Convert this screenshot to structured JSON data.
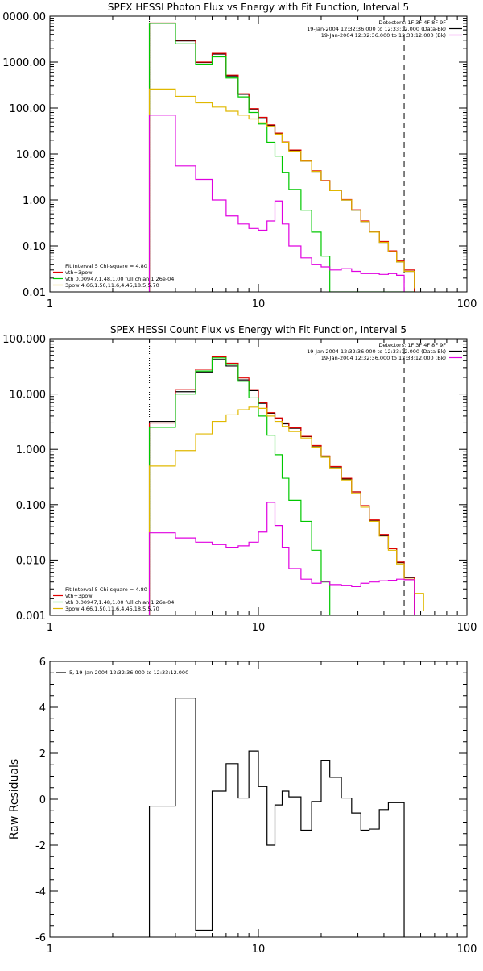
{
  "chart_data": [
    {
      "type": "line",
      "title": "SPEX HESSI Photon Flux vs Energy with Fit Function, Interval 5",
      "xlabel": "",
      "ylabel": "",
      "xscale": "log",
      "yscale": "log",
      "xlim": [
        1,
        100
      ],
      "ylim": [
        0.01,
        10000
      ],
      "xtick_labels": [
        {
          "v": 1,
          "t": "1"
        },
        {
          "v": 10,
          "t": "10"
        },
        {
          "v": 100,
          "t": "100"
        }
      ],
      "ytick_labels": [
        {
          "v": 0.01,
          "t": "0.01"
        },
        {
          "v": 0.1,
          "t": "0.10"
        },
        {
          "v": 1,
          "t": "1.00"
        },
        {
          "v": 10,
          "t": "10.00"
        },
        {
          "v": 100,
          "t": "100.00"
        },
        {
          "v": 1000,
          "t": "1000.00"
        },
        {
          "v": 10000,
          "t": "0000.00"
        }
      ],
      "vlines": [
        {
          "x": 3,
          "style": "dotted"
        },
        {
          "x": 50,
          "style": "dashed"
        }
      ],
      "bin_edges": [
        3,
        4,
        5,
        6,
        7,
        8,
        9,
        10,
        11,
        12,
        13,
        14,
        16,
        18,
        20,
        22,
        25,
        28,
        31,
        34,
        38,
        42,
        46,
        50,
        56
      ],
      "series": [
        {
          "color": "#000000",
          "values": [
            7000,
            2900,
            980,
            1500,
            500,
            200,
            95,
            62,
            42,
            28,
            18,
            12,
            7,
            4.2,
            2.6,
            1.6,
            1.0,
            0.6,
            0.34,
            0.2,
            0.12,
            0.075,
            0.045,
            0.028
          ]
        },
        {
          "color": "#e00000",
          "values": [
            7100,
            3000,
            1000,
            1550,
            520,
            205,
            97,
            63,
            43,
            28.5,
            18.3,
            12.2,
            7.1,
            4.3,
            2.65,
            1.62,
            1.02,
            0.61,
            0.35,
            0.21,
            0.125,
            0.078,
            0.047,
            0.03
          ]
        },
        {
          "color": "#00c800",
          "values": [
            7000,
            2500,
            900,
            1300,
            450,
            175,
            80,
            45,
            18,
            9,
            4,
            1.7,
            0.6,
            0.2,
            0.06,
            0.01,
            0.01,
            0.01,
            0.01,
            0.01,
            0.01,
            0.01,
            0.01,
            0.01
          ]
        },
        {
          "color": "#e0b800",
          "values": [
            260,
            180,
            130,
            105,
            85,
            70,
            58,
            48,
            40,
            27,
            18,
            11.5,
            7,
            4.2,
            2.6,
            1.6,
            1.0,
            0.6,
            0.34,
            0.2,
            0.12,
            0.075,
            0.045,
            0.028,
            0.012
          ]
        },
        {
          "color": "#e000e0",
          "values": [
            70,
            5.5,
            2.8,
            1.0,
            0.45,
            0.3,
            0.24,
            0.22,
            0.35,
            0.95,
            0.3,
            0.1,
            0.055,
            0.04,
            0.035,
            0.03,
            0.032,
            0.028,
            0.025,
            0.025,
            0.024,
            0.025,
            0.023
          ]
        }
      ],
      "legend_top": [
        {
          "text": "Detectors: 1F 3F 4F 8F 9F",
          "color": ""
        },
        {
          "text": "19-Jan-2004 12:32:36.000 to 12:33:12.000 (Data-Bk)",
          "color": "#000000"
        },
        {
          "text": "19-Jan-2004 12:32:36.000 to 12:33:12.000 (Bk)",
          "color": "#e000e0"
        }
      ],
      "legend_bottom": [
        {
          "text": "Fit Interval 5   Chi-square = 4.80",
          "color": ""
        },
        {
          "text": "vth+3pow",
          "color": "#e00000"
        },
        {
          "text": "vth 0.00947,1.48,1.00  full chian 1.26e-04",
          "color": "#00c800"
        },
        {
          "text": "3pow 4.66,1.50,11.6,4.45,18.5,5.70",
          "color": "#e0b800"
        }
      ]
    },
    {
      "type": "line",
      "title": "SPEX HESSI Count Flux vs Energy with Fit Function, Interval 5",
      "xlabel": "",
      "ylabel": "",
      "xscale": "log",
      "yscale": "log",
      "xlim": [
        1,
        100
      ],
      "ylim": [
        0.001,
        100
      ],
      "xtick_labels": [
        {
          "v": 1,
          "t": "1"
        },
        {
          "v": 10,
          "t": "10"
        },
        {
          "v": 100,
          "t": "100"
        }
      ],
      "ytick_labels": [
        {
          "v": 0.001,
          "t": "0.001"
        },
        {
          "v": 0.01,
          "t": "0.010"
        },
        {
          "v": 0.1,
          "t": "0.100"
        },
        {
          "v": 1,
          "t": "1.000"
        },
        {
          "v": 10,
          "t": "10.000"
        },
        {
          "v": 100,
          "t": "100.000"
        }
      ],
      "vlines": [
        {
          "x": 3,
          "style": "dotted"
        },
        {
          "x": 50,
          "style": "dashed"
        }
      ],
      "bin_edges": [
        3,
        4,
        5,
        6,
        7,
        8,
        9,
        10,
        11,
        12,
        13,
        14,
        16,
        18,
        20,
        22,
        25,
        28,
        31,
        34,
        38,
        42,
        46,
        50,
        56,
        62
      ],
      "series": [
        {
          "color": "#000000",
          "values": [
            3.2,
            11,
            25,
            42,
            32,
            18,
            11.5,
            6.8,
            4.5,
            3.6,
            2.9,
            2.4,
            1.7,
            1.15,
            0.75,
            0.48,
            0.29,
            0.17,
            0.095,
            0.052,
            0.028,
            0.016,
            0.009,
            0.0048
          ]
        },
        {
          "color": "#e00000",
          "values": [
            3.0,
            12,
            28,
            47,
            36,
            19.5,
            12,
            7,
            4.6,
            3.7,
            3.0,
            2.45,
            1.72,
            1.17,
            0.76,
            0.49,
            0.3,
            0.17,
            0.096,
            0.053,
            0.029,
            0.016,
            0.0092,
            0.0049
          ]
        },
        {
          "color": "#00c800",
          "values": [
            2.5,
            10,
            26,
            45,
            34,
            17,
            8.5,
            4,
            1.8,
            0.8,
            0.3,
            0.12,
            0.05,
            0.015,
            0.004,
            0.001,
            0.001,
            0.001,
            0.001,
            0.001,
            0.001,
            0.001,
            0.001,
            0.001
          ]
        },
        {
          "color": "#e0b800",
          "values": [
            0.5,
            0.95,
            1.9,
            3.2,
            4.2,
            5.2,
            5.8,
            5.5,
            4.0,
            3.2,
            2.6,
            2.1,
            1.6,
            1.1,
            0.72,
            0.46,
            0.28,
            0.16,
            0.09,
            0.05,
            0.027,
            0.015,
            0.0085,
            0.0045,
            0.0025,
            0.0012
          ]
        },
        {
          "color": "#e000e0",
          "values": [
            0.031,
            0.025,
            0.021,
            0.019,
            0.017,
            0.018,
            0.021,
            0.032,
            0.11,
            0.042,
            0.017,
            0.007,
            0.0045,
            0.0038,
            0.0041,
            0.0036,
            0.0035,
            0.0033,
            0.0038,
            0.004,
            0.0042,
            0.0043,
            0.0045,
            0.0044
          ]
        }
      ],
      "legend_top": [
        {
          "text": "Detectors: 1F 3F 4F 8F 9F",
          "color": ""
        },
        {
          "text": "19-Jan-2004 12:32:36.000 to 12:33:12.000 (Data-Bk)",
          "color": "#000000"
        },
        {
          "text": "19-Jan-2004 12:32:36.000 to 12:33:12.000 (Bk)",
          "color": "#e000e0"
        }
      ],
      "legend_bottom": [
        {
          "text": "Fit Interval 5   Chi-square = 4.80",
          "color": ""
        },
        {
          "text": "vth+3pow",
          "color": "#e00000"
        },
        {
          "text": "vth 0.00947,1.48,1.00  full chian 1.26e-04",
          "color": "#00c800"
        },
        {
          "text": "3pow 4.66,1.50,11.6,4.45,18.5,5.70",
          "color": "#e0b800"
        }
      ]
    },
    {
      "type": "line",
      "title": "",
      "xlabel": "",
      "ylabel": "Raw Residuals",
      "xscale": "log",
      "yscale": "linear",
      "xlim": [
        1,
        100
      ],
      "ylim": [
        -6,
        6
      ],
      "xtick_labels": [
        {
          "v": 1,
          "t": "1"
        },
        {
          "v": 10,
          "t": "10"
        },
        {
          "v": 100,
          "t": "100"
        }
      ],
      "ytick_labels": [
        {
          "v": -6,
          "t": "-6"
        },
        {
          "v": -4,
          "t": "-4"
        },
        {
          "v": -2,
          "t": "-2"
        },
        {
          "v": 0,
          "t": "0"
        },
        {
          "v": 2,
          "t": "2"
        },
        {
          "v": 4,
          "t": "4"
        },
        {
          "v": 6,
          "t": "6"
        }
      ],
      "vlines": [],
      "bin_edges": [
        3,
        4,
        5,
        6,
        7,
        8,
        9,
        10,
        11,
        12,
        13,
        14,
        16,
        18,
        20,
        22,
        25,
        28,
        31,
        34,
        38,
        42,
        46,
        50
      ],
      "series": [
        {
          "color": "#000000",
          "values": [
            -0.3,
            4.4,
            -5.7,
            0.35,
            1.55,
            0.05,
            2.1,
            0.55,
            -2.0,
            -0.25,
            0.35,
            0.1,
            -1.35,
            -0.1,
            1.7,
            0.95,
            0.05,
            -0.6,
            -1.35,
            -1.3,
            -0.45,
            -0.15,
            -0.15
          ],
          "drop_to_axis": true
        }
      ],
      "legend_top": [
        {
          "text": "5, 19-Jan-2004 12:32:36.000 to 12:33:12.000",
          "color": "#000000"
        }
      ],
      "legend_bottom": []
    }
  ]
}
